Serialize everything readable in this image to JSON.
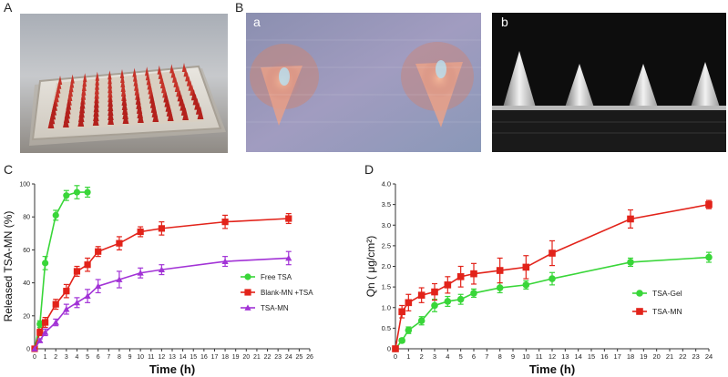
{
  "figure": {
    "panels": [
      {
        "letter": "A"
      },
      {
        "letter": "B",
        "subpanels": [
          {
            "letter": "a"
          },
          {
            "letter": "b"
          }
        ]
      },
      {
        "letter": "C"
      },
      {
        "letter": "D"
      }
    ]
  },
  "chart_data": [
    {
      "type": "line",
      "xlabel": "Time (h)",
      "ylabel": "Released TSA-MN (%)",
      "xlim": [
        0,
        26
      ],
      "ylim": [
        0,
        100
      ],
      "xticks": [
        "0",
        "1",
        "2",
        "3",
        "4",
        "5",
        "6",
        "7",
        "8",
        "9",
        "10",
        "11",
        "12",
        "13",
        "14",
        "15",
        "16",
        "17",
        "18",
        "19",
        "20",
        "21",
        "22",
        "23",
        "24",
        "25",
        "26"
      ],
      "yticks": [
        "0",
        "20",
        "40",
        "60",
        "80",
        "100"
      ],
      "legend_position": "bottom-right",
      "series": [
        {
          "name": "Free TSA",
          "color": "#39d639",
          "marker": "circle",
          "x": [
            0,
            0.5,
            1,
            2,
            3,
            4,
            5
          ],
          "y": [
            0,
            15,
            52,
            81,
            93,
            95,
            95
          ],
          "err": [
            0,
            2,
            4,
            3,
            3,
            4,
            3
          ]
        },
        {
          "name": "Blank-MN +TSA",
          "color": "#e2231a",
          "marker": "square",
          "x": [
            0,
            0.5,
            1,
            2,
            3,
            4,
            5,
            6,
            8,
            10,
            12,
            18,
            24
          ],
          "y": [
            0,
            10,
            16,
            27,
            35,
            47,
            51,
            59,
            64,
            71,
            73,
            77,
            79
          ],
          "err": [
            0,
            2,
            3,
            3,
            4,
            3,
            4,
            3,
            4,
            3,
            4,
            4,
            3
          ]
        },
        {
          "name": "TSA-MN",
          "color": "#a233d6",
          "marker": "triangle",
          "x": [
            0,
            0.5,
            1,
            2,
            3,
            4,
            5,
            6,
            8,
            10,
            12,
            18,
            24
          ],
          "y": [
            0,
            5,
            10,
            16,
            24,
            28,
            32,
            38,
            42,
            46,
            48,
            53,
            55
          ],
          "err": [
            0,
            1,
            2,
            2,
            3,
            3,
            4,
            4,
            5,
            3,
            3,
            3,
            4
          ]
        }
      ]
    },
    {
      "type": "line",
      "xlabel": "Time (h)",
      "ylabel": "Qn ( μg/cm²)",
      "xlim": [
        0,
        24
      ],
      "ylim": [
        0,
        4.0
      ],
      "xticks": [
        "0",
        "1",
        "2",
        "3",
        "4",
        "5",
        "6",
        "7",
        "8",
        "9",
        "10",
        "11",
        "12",
        "13",
        "14",
        "15",
        "16",
        "17",
        "18",
        "19",
        "20",
        "21",
        "22",
        "23",
        "24"
      ],
      "yticks": [
        "0",
        "0.5",
        "1.0",
        "1.5",
        "2.0",
        "2.5",
        "3.0",
        "3.5",
        "4.0"
      ],
      "legend_position": "bottom-right",
      "series": [
        {
          "name": "TSA-Gel",
          "color": "#39d639",
          "marker": "circle",
          "x": [
            0,
            0.5,
            1,
            2,
            3,
            4,
            5,
            6,
            8,
            10,
            12,
            18,
            24
          ],
          "y": [
            0,
            0.2,
            0.45,
            0.68,
            1.05,
            1.15,
            1.2,
            1.35,
            1.48,
            1.55,
            1.7,
            2.1,
            2.22
          ],
          "err": [
            0,
            0.05,
            0.08,
            0.1,
            0.15,
            0.12,
            0.12,
            0.1,
            0.12,
            0.1,
            0.15,
            0.1,
            0.12
          ]
        },
        {
          "name": "TSA-MN",
          "color": "#e2231a",
          "marker": "square",
          "x": [
            0,
            0.5,
            1,
            2,
            3,
            4,
            5,
            6,
            8,
            10,
            12,
            18,
            24
          ],
          "y": [
            0,
            0.9,
            1.12,
            1.3,
            1.38,
            1.55,
            1.75,
            1.82,
            1.9,
            1.98,
            2.32,
            3.15,
            3.5
          ],
          "err": [
            0,
            0.15,
            0.2,
            0.18,
            0.2,
            0.2,
            0.25,
            0.25,
            0.3,
            0.28,
            0.3,
            0.22,
            0.1
          ]
        }
      ]
    }
  ]
}
